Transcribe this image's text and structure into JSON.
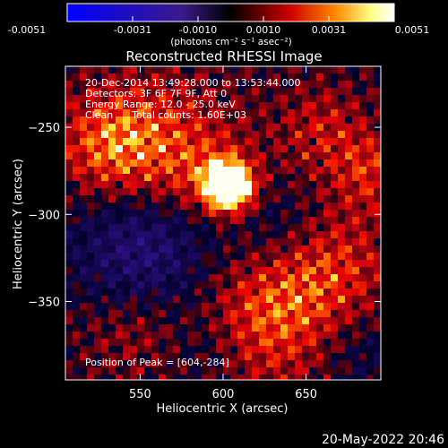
{
  "chart_data": {
    "type": "heatmap",
    "title": "Reconstructed RHESSI Image",
    "xlabel": "Heliocentric X (arcsec)",
    "ylabel": "Heliocentric Y (arcsec)",
    "xlim": [
      505,
      695
    ],
    "ylim": [
      -395,
      -215
    ],
    "x_ticks": [
      550,
      600,
      650
    ],
    "y_ticks": [
      -250,
      -300,
      -350
    ],
    "colorbar": {
      "label": "(photons cm⁻² s⁻¹ asec⁻²)",
      "range": [
        -0.0051,
        0.0051
      ],
      "ticks": [
        "-0.0051",
        "-0.0031",
        "-0.0010",
        "0.0010",
        "0.0031",
        "0.0051"
      ],
      "stops": [
        "#0000ff",
        "#3a1a8a",
        "#000000",
        "#cc0000",
        "#ff8800",
        "#ffff88",
        "#ffffff"
      ]
    },
    "annotations": [
      "20-Dec-2014 13:49:28.000 to 13:53:44.000",
      "Detectors: 3F 6F 7F 9F, Att 0",
      "Energy Range: 12.0 - 25.0 keV",
      "Clean      Total counts: 1.60E+03"
    ],
    "peak": {
      "label": "Position of Peak = [604,-284]",
      "x": 604,
      "y": -284
    },
    "footer_date": "20-May-2022 20:46"
  }
}
